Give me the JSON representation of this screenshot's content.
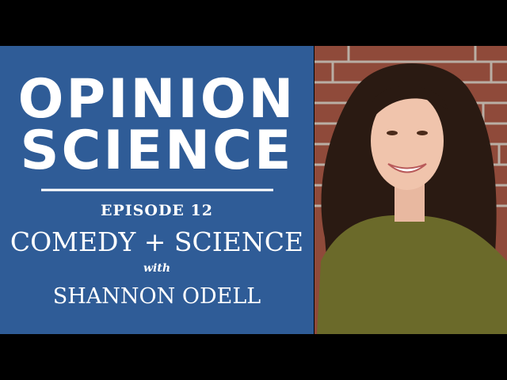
{
  "title": {
    "line1": "OPINION",
    "line2": "SCIENCE"
  },
  "episode": "EPISODE 12",
  "topic": "COMEDY + SCIENCE",
  "with": "with",
  "guest": "SHANNON ODELL"
}
